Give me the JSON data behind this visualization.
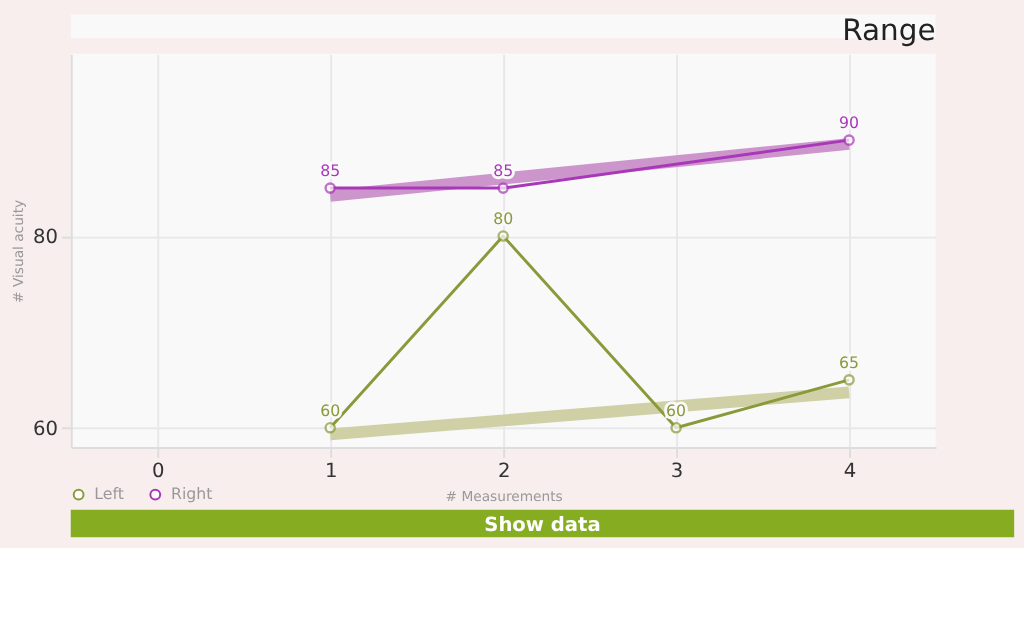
{
  "chart_data": {
    "type": "line",
    "title": "Range",
    "xlabel": "# Measurements",
    "ylabel": "# Visual acuity",
    "x": [
      1,
      2,
      3,
      4
    ],
    "series": [
      {
        "name": "Left",
        "color": "#8a9a3a",
        "values": [
          60,
          80,
          60,
          65
        ],
        "value_labels": [
          "60",
          "80",
          "60",
          "65"
        ]
      },
      {
        "name": "Right",
        "color": "#a838b8",
        "x": [
          1,
          2,
          4
        ],
        "values": [
          85,
          85,
          90
        ],
        "value_labels": [
          "85",
          "85",
          "90"
        ]
      },
      {
        "type": "line",
        "color": "#cfd0a6",
        "x": [
          1,
          4
        ],
        "values": [
          59.3,
          63.7
        ],
        "marker": "none"
      },
      {
        "type": "line",
        "color": "#cc96cc",
        "x": [
          1,
          4
        ],
        "values": [
          84.2,
          89.6
        ],
        "marker": "none"
      }
    ],
    "xlim": [
      -0.5,
      4.5
    ],
    "ylim": [
      58,
      99
    ],
    "xticks": [
      0,
      1,
      2,
      3,
      4
    ],
    "yticks": [
      60,
      80
    ],
    "grid": true,
    "legend": "bottom left",
    "marker": "circle",
    "line_style": "solid",
    "annotations": [
      "Show data"
    ]
  }
}
